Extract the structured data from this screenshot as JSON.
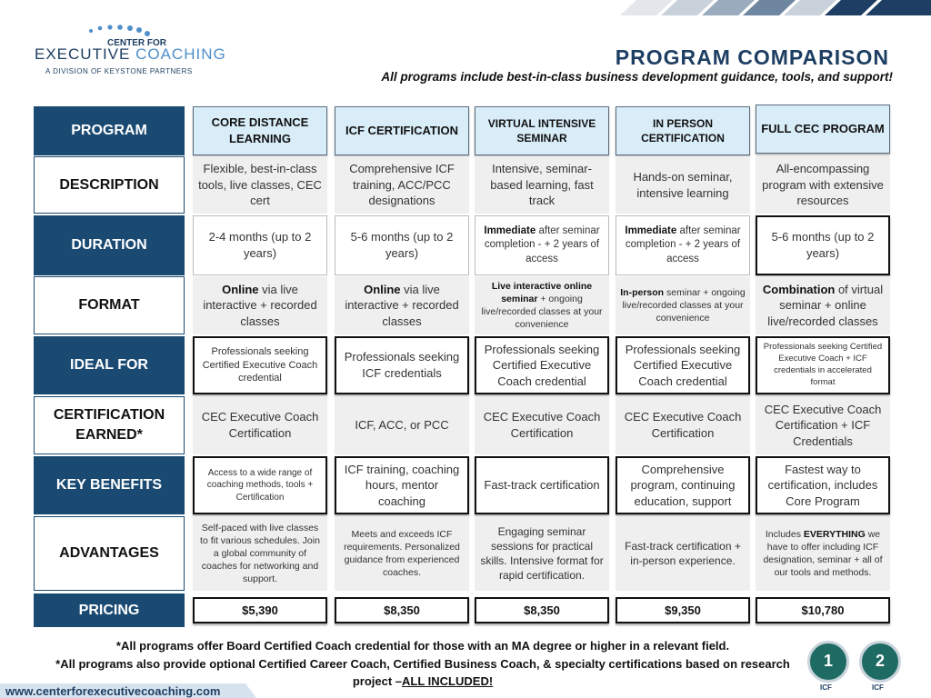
{
  "logo": {
    "line1": "CENTER FOR",
    "line2a": "EXECUTIVE",
    "line2b": "COACHING",
    "line3": "A DIVISION OF KEYSTONE PARTNERS"
  },
  "header": {
    "title": "PROGRAM COMPARISON",
    "subtitle": "All programs include best-in-class business development guidance, tools, and support!"
  },
  "table": {
    "rows": [
      {
        "label": "PROGRAM",
        "cells": [
          "CORE DISTANCE LEARNING",
          "ICF CERTIFICATION",
          "VIRTUAL INTENSIVE SEMINAR",
          "IN PERSON CERTIFICATION",
          "FULL CEC PROGRAM"
        ]
      },
      {
        "label": "DESCRIPTION",
        "cells": [
          "Flexible, best-in-class tools, live classes, CEC cert",
          "Comprehensive ICF training, ACC/PCC designations",
          "Intensive, seminar-based learning, fast track",
          "Hands-on seminar, intensive learning",
          "All-encompassing program with extensive resources"
        ]
      },
      {
        "label": "DURATION",
        "cells": [
          "2-4 months (up to 2 years)",
          "5-6 months (up to 2 years)",
          [
            {
              "t": "Immediate",
              "b": true
            },
            {
              "t": " after seminar completion - + 2 years of access"
            }
          ],
          [
            {
              "t": "Immediate",
              "b": true
            },
            {
              "t": " after seminar completion - + 2 years of access"
            }
          ],
          "5-6 months (up to 2 years)"
        ]
      },
      {
        "label": "FORMAT",
        "cells": [
          [
            {
              "t": "Online",
              "b": true
            },
            {
              "t": " via live interactive + recorded classes"
            }
          ],
          [
            {
              "t": "Online",
              "b": true
            },
            {
              "t": " via live interactive + recorded classes"
            }
          ],
          [
            {
              "t": "Live interactive online seminar",
              "b": true
            },
            {
              "t": " + ongoing live/recorded classes at your convenience"
            }
          ],
          [
            {
              "t": "In-person",
              "b": true
            },
            {
              "t": " seminar + ongoing live/recorded classes at your convenience"
            }
          ],
          [
            {
              "t": "Combination",
              "b": true
            },
            {
              "t": " of virtual seminar + online live/recorded classes"
            }
          ]
        ]
      },
      {
        "label": "IDEAL FOR",
        "cells": [
          "Professionals seeking Certified Executive Coach credential",
          "Professionals seeking ICF credentials",
          "Professionals seeking Certified Executive Coach credential",
          "Professionals seeking Certified Executive Coach credential",
          "Professionals seeking Certified Executive Coach + ICF credentials in accelerated format"
        ]
      },
      {
        "label": "CERTIFICATION EARNED*",
        "cells": [
          "CEC Executive Coach Certification",
          "ICF, ACC, or PCC",
          "CEC Executive Coach Certification",
          "CEC Executive Coach Certification",
          "CEC Executive Coach Certification + ICF Credentials"
        ]
      },
      {
        "label": "KEY BENEFITS",
        "cells": [
          "Access to a wide range of coaching methods, tools + Certification",
          "ICF training, coaching hours, mentor coaching",
          "Fast-track certification",
          "Comprehensive program, continuing education, support",
          "Fastest way to certification, includes Core Program"
        ]
      },
      {
        "label": "ADVANTAGES",
        "cells": [
          "Self-paced with live classes to fit various schedules. Join a global community of coaches for networking and support.",
          "Meets and exceeds ICF requirements. Personalized guidance from experienced coaches.",
          "Engaging seminar sessions for practical skills. Intensive format for rapid certification.",
          "Fast-track certification + in-person experience.",
          [
            {
              "t": "Includes "
            },
            {
              "t": "EVERYTHING",
              "b": true
            },
            {
              "t": " we have to offer including ICF designation, seminar + all of our tools and methods."
            }
          ]
        ]
      },
      {
        "label": "PRICING",
        "cells": [
          "$5,390",
          "$8,350",
          "$8,350",
          "$9,350",
          "$10,780"
        ]
      }
    ]
  },
  "footer": {
    "note1": "*All programs offer Board Certified Coach credential for those with an MA degree or higher in a relevant field.",
    "note2": [
      {
        "t": "*All programs also provide optional Certified Career Coach, Certified Business Coach, & specialty certifications based on research project –"
      },
      {
        "t": "ALL INCLUDED!",
        "b": true,
        "u": true
      }
    ],
    "website": "www.centerforexecutivecoaching.com",
    "badges": [
      {
        "number": "1",
        "org": "ICF"
      },
      {
        "number": "2",
        "org": "ICF"
      }
    ]
  }
}
